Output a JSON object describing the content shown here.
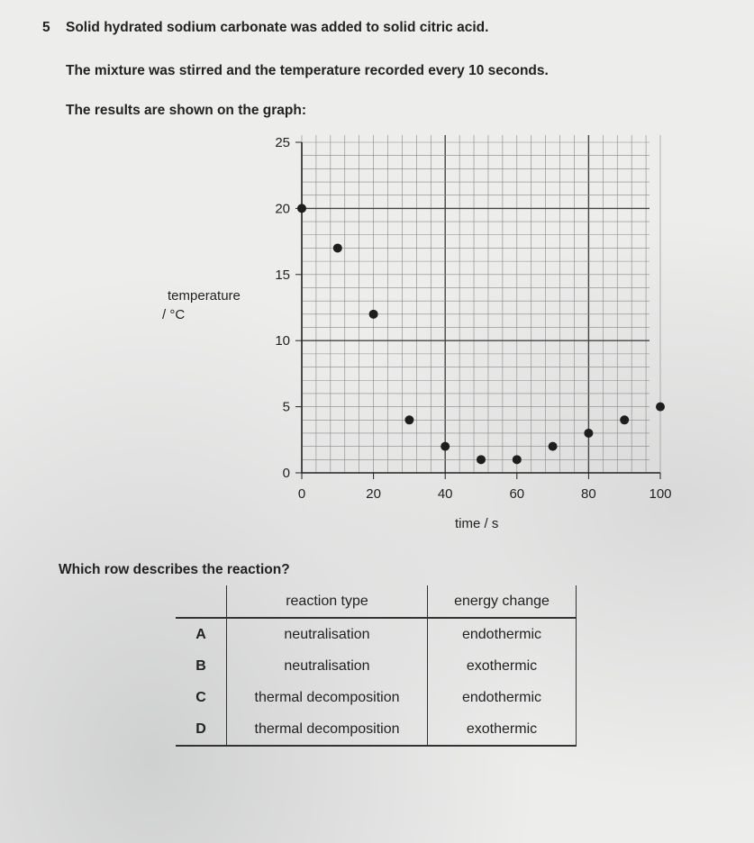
{
  "question": {
    "number": "5",
    "line1": "Solid hydrated sodium carbonate was added to solid citric acid.",
    "line2": "The mixture was stirred and the temperature recorded every 10 seconds.",
    "line3": "The results are shown on the graph:",
    "prompt": "Which row describes the reaction?"
  },
  "chart_data": {
    "type": "scatter",
    "xlabel": "time / s",
    "ylabel_line1": "temperature",
    "ylabel_line2": "/ °C",
    "xlim": [
      0,
      100
    ],
    "ylim": [
      0,
      25
    ],
    "x_ticks": [
      "0",
      "20",
      "40",
      "60",
      "80",
      "100"
    ],
    "y_ticks": [
      "0",
      "5",
      "10",
      "15",
      "20",
      "25"
    ],
    "grid": true,
    "x": [
      0,
      10,
      20,
      30,
      40,
      50,
      60,
      70,
      80,
      90,
      100
    ],
    "y": [
      20,
      17,
      12,
      4,
      2,
      1,
      1,
      2,
      3,
      4,
      5
    ]
  },
  "table": {
    "headers": [
      "",
      "reaction type",
      "energy change"
    ],
    "rows": [
      {
        "letter": "A",
        "reaction": "neutralisation",
        "energy": "endothermic"
      },
      {
        "letter": "B",
        "reaction": "neutralisation",
        "energy": "exothermic"
      },
      {
        "letter": "C",
        "reaction": "thermal decomposition",
        "energy": "endothermic"
      },
      {
        "letter": "D",
        "reaction": "thermal decomposition",
        "energy": "exothermic"
      }
    ]
  }
}
